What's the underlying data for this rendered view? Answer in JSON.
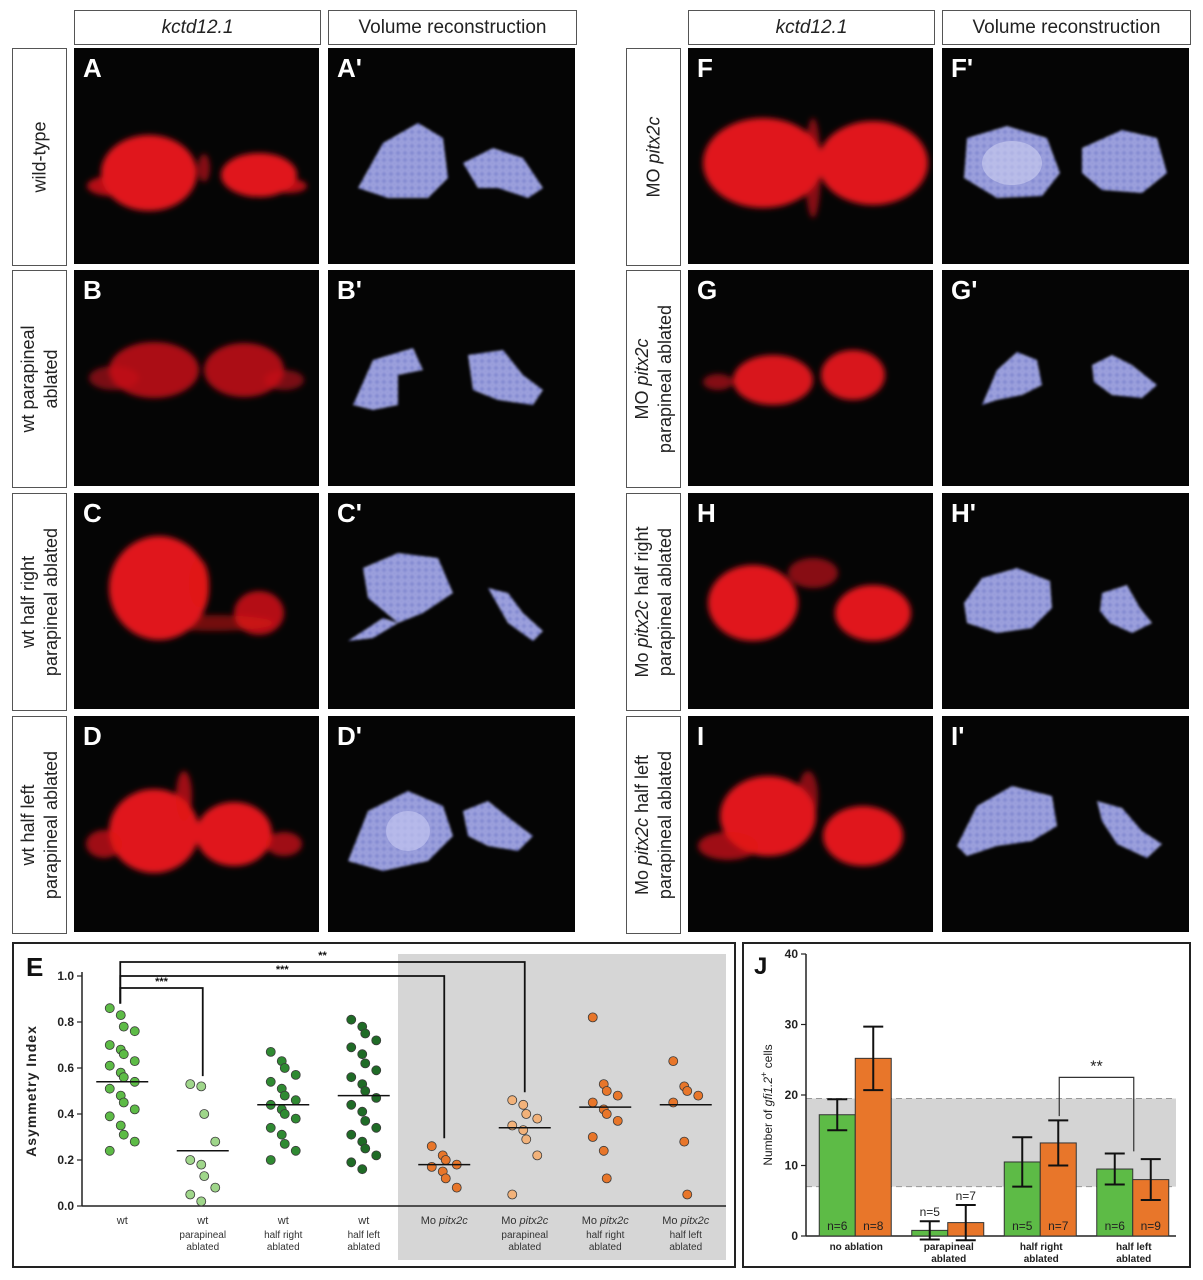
{
  "headers": {
    "left_gene": "kctd12.1",
    "left_recon": "Volume reconstruction",
    "right_gene": "kctd12.1",
    "right_recon": "Volume reconstruction"
  },
  "rows_left": [
    {
      "line1": "wild-type",
      "line2": ""
    },
    {
      "line1": "wt parapineal",
      "line2": "ablated"
    },
    {
      "line1": "wt half right",
      "line2": "parapineal ablated"
    },
    {
      "line1": "wt half left",
      "line2": "parapineal ablated"
    }
  ],
  "rows_right": [
    {
      "line1_pre": "MO ",
      "line1_it": "pitx2c",
      "line1_post": "",
      "line2": ""
    },
    {
      "line1_pre": "MO ",
      "line1_it": "pitx2c",
      "line1_post": "",
      "line2": "parapineal ablated"
    },
    {
      "line1_pre": "Mo ",
      "line1_it": "pitx2c",
      "line1_post": " half right",
      "line2": "parapineal ablated"
    },
    {
      "line1_pre": "Mo ",
      "line1_it": "pitx2c",
      "line1_post": " half left",
      "line2": "parapineal ablated"
    }
  ],
  "panel_letters": {
    "A": "A",
    "A2": "A'",
    "B": "B",
    "B2": "B'",
    "C": "C",
    "C2": "C'",
    "D": "D",
    "D2": "D'",
    "F": "F",
    "F2": "F'",
    "G": "G",
    "G2": "G'",
    "H": "H",
    "H2": "H'",
    "I": "I",
    "I2": "I'"
  },
  "colors": {
    "stain_red": "#e0141a",
    "recon_blue": "#8a8fd6",
    "green_mid": "#5dbb46",
    "green_light": "#9fd68a",
    "green_dark": "#2f8a32",
    "green_darker": "#1f6b26",
    "orange": "#e8762a",
    "orange_light": "#f2b27a",
    "shade": "#d6d6d6"
  },
  "panel_E_letter": "E",
  "panel_J_letter": "J",
  "chart_data": [
    {
      "panel": "E",
      "type": "scatter",
      "ylabel": "Asymmetry Index",
      "ylim": [
        0.0,
        1.0
      ],
      "yticks": [
        "0.0",
        "0.2",
        "0.4",
        "0.6",
        "0.8",
        "1.0"
      ],
      "groups": [
        {
          "label_it": "",
          "label_line1": "wt",
          "label_line2": "",
          "label_line3": "",
          "mean": 0.54,
          "values": [
            0.86,
            0.83,
            0.78,
            0.76,
            0.7,
            0.68,
            0.66,
            0.63,
            0.61,
            0.58,
            0.56,
            0.54,
            0.51,
            0.48,
            0.45,
            0.42,
            0.39,
            0.35,
            0.31,
            0.28,
            0.24
          ]
        },
        {
          "label_it": "",
          "label_line1": "wt",
          "label_line2": "parapineal",
          "label_line3": "ablated",
          "mean": 0.24,
          "values": [
            0.53,
            0.52,
            0.4,
            0.28,
            0.2,
            0.18,
            0.13,
            0.08,
            0.05,
            0.02
          ]
        },
        {
          "label_it": "",
          "label_line1": "wt",
          "label_line2": "half right",
          "label_line3": "ablated",
          "mean": 0.44,
          "values": [
            0.67,
            0.63,
            0.6,
            0.57,
            0.54,
            0.51,
            0.48,
            0.46,
            0.44,
            0.42,
            0.4,
            0.38,
            0.34,
            0.31,
            0.27,
            0.24,
            0.2
          ]
        },
        {
          "label_it": "",
          "label_line1": "wt",
          "label_line2": "half left",
          "label_line3": "ablated",
          "mean": 0.48,
          "values": [
            0.81,
            0.78,
            0.75,
            0.72,
            0.69,
            0.66,
            0.62,
            0.59,
            0.56,
            0.53,
            0.5,
            0.47,
            0.44,
            0.41,
            0.37,
            0.34,
            0.31,
            0.28,
            0.25,
            0.22,
            0.19,
            0.16
          ]
        },
        {
          "label_pre": "Mo ",
          "label_it": "pitx2c",
          "label_line1": "",
          "label_line2": "",
          "label_line3": "",
          "mean": 0.18,
          "values": [
            0.26,
            0.22,
            0.2,
            0.18,
            0.17,
            0.15,
            0.12,
            0.08
          ]
        },
        {
          "label_pre": "Mo ",
          "label_it": "pitx2c",
          "label_line1": "",
          "label_line2": "parapineal",
          "label_line3": "ablated",
          "mean": 0.34,
          "values": [
            0.46,
            0.44,
            0.4,
            0.38,
            0.35,
            0.33,
            0.29,
            0.22,
            0.05
          ]
        },
        {
          "label_pre": "Mo ",
          "label_it": "pitx2c",
          "label_line1": "",
          "label_line2": "half right",
          "label_line3": "ablated",
          "mean": 0.43,
          "values": [
            0.82,
            0.53,
            0.5,
            0.48,
            0.45,
            0.42,
            0.4,
            0.37,
            0.3,
            0.24,
            0.12
          ]
        },
        {
          "label_pre": "Mo ",
          "label_it": "pitx2c",
          "label_line1": "",
          "label_line2": "half left",
          "label_line3": "ablated",
          "mean": 0.44,
          "values": [
            0.63,
            0.52,
            0.5,
            0.48,
            0.45,
            0.28,
            0.05
          ]
        }
      ],
      "significance": [
        {
          "from": 0,
          "to": 5,
          "label": "**"
        },
        {
          "from": 0,
          "to": 4,
          "label": "***"
        },
        {
          "from": 0,
          "to": 1,
          "label": "***"
        }
      ]
    },
    {
      "panel": "J",
      "type": "bar",
      "ylabel_pre": "Number of ",
      "ylabel_it": "gfi1.2",
      "ylabel_sup": "+",
      "ylabel_post": " cells",
      "ylim": [
        0,
        40
      ],
      "yticks": [
        "0",
        "10",
        "20",
        "30",
        "40"
      ],
      "reference_band": [
        7,
        19.5
      ],
      "categories": [
        {
          "line1": "no ablation",
          "line2": ""
        },
        {
          "line1": "parapineal",
          "line2": "ablated"
        },
        {
          "line1": "half right",
          "line2": "ablated"
        },
        {
          "line1": "half left",
          "line2": "ablated"
        }
      ],
      "series": [
        {
          "values": [
            17.2,
            0.8,
            10.5,
            9.5
          ],
          "errors": [
            2.2,
            1.3,
            3.5,
            2.2
          ],
          "n": [
            "n=6",
            "n=5",
            "n=5",
            "n=6"
          ]
        },
        {
          "values": [
            25.2,
            1.9,
            13.2,
            8.0
          ],
          "errors": [
            4.5,
            2.5,
            3.2,
            2.9
          ],
          "n": [
            "n=8",
            "n=7",
            "n=7",
            "n=9"
          ]
        }
      ],
      "significance": [
        {
          "from_cat": 2,
          "to_cat": 3,
          "label": "**"
        }
      ]
    }
  ]
}
